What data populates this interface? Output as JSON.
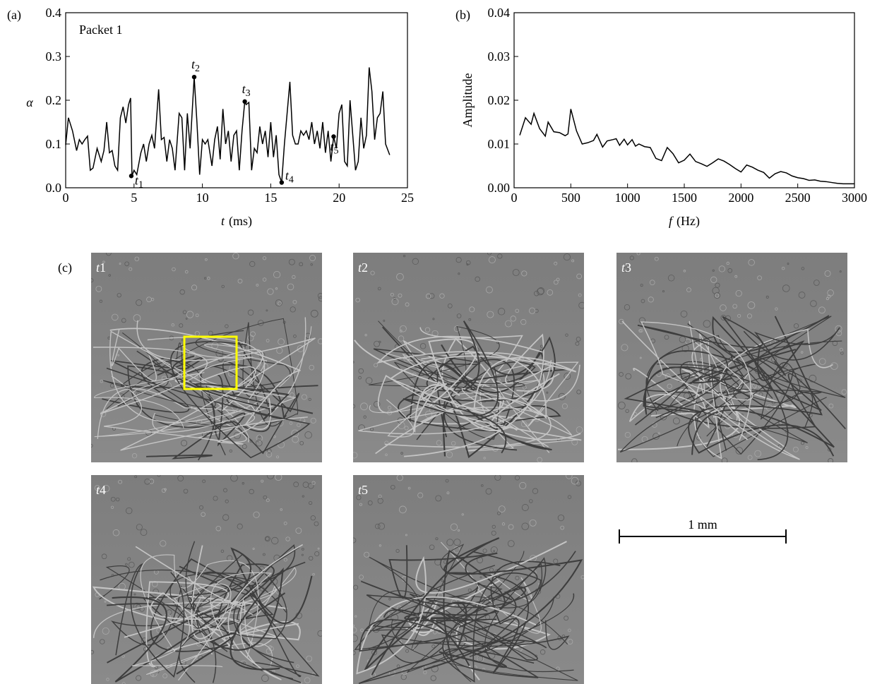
{
  "chart_data": [
    {
      "type": "line",
      "panel": "(a)",
      "annotation": "Packet 1",
      "ylabel": "α",
      "xlabel_var": "t",
      "xlabel_unit": "(ms)",
      "x": [
        0,
        0.2,
        0.5,
        0.8,
        1.0,
        1.2,
        1.4,
        1.6,
        1.8,
        2.0,
        2.3,
        2.6,
        2.8,
        3.0,
        3.2,
        3.4,
        3.6,
        3.8,
        4.0,
        4.2,
        4.4,
        4.6,
        4.75,
        4.85,
        5.0,
        5.2,
        5.5,
        5.7,
        5.9,
        6.1,
        6.3,
        6.5,
        6.8,
        7.0,
        7.2,
        7.4,
        7.6,
        7.8,
        8.0,
        8.3,
        8.5,
        8.7,
        8.9,
        9.1,
        9.4,
        9.6,
        9.8,
        10.0,
        10.2,
        10.4,
        10.7,
        10.9,
        11.1,
        11.3,
        11.5,
        11.7,
        11.9,
        12.1,
        12.3,
        12.5,
        12.7,
        12.9,
        13.1,
        13.2,
        13.4,
        13.6,
        13.8,
        14.0,
        14.2,
        14.4,
        14.6,
        14.8,
        15.0,
        15.2,
        15.4,
        15.6,
        15.8,
        16.0,
        16.4,
        16.6,
        16.8,
        17.0,
        17.2,
        17.4,
        17.6,
        17.8,
        18.0,
        18.2,
        18.4,
        18.6,
        18.8,
        19.0,
        19.2,
        19.4,
        19.6,
        19.8,
        20.0,
        20.2,
        20.4,
        20.6,
        20.8,
        21.0,
        21.2,
        21.4,
        21.6,
        21.8,
        22.0,
        22.2,
        22.4,
        22.6,
        22.8,
        23.0,
        23.2,
        23.4,
        23.7
      ],
      "values": [
        0.098,
        0.16,
        0.13,
        0.085,
        0.11,
        0.1,
        0.11,
        0.118,
        0.04,
        0.045,
        0.09,
        0.06,
        0.085,
        0.15,
        0.08,
        0.085,
        0.05,
        0.04,
        0.16,
        0.185,
        0.148,
        0.19,
        0.205,
        0.027,
        0.04,
        0.03,
        0.08,
        0.1,
        0.06,
        0.1,
        0.12,
        0.09,
        0.225,
        0.11,
        0.115,
        0.06,
        0.11,
        0.09,
        0.04,
        0.17,
        0.16,
        0.04,
        0.17,
        0.09,
        0.253,
        0.15,
        0.03,
        0.11,
        0.1,
        0.11,
        0.05,
        0.11,
        0.14,
        0.065,
        0.18,
        0.1,
        0.13,
        0.06,
        0.12,
        0.13,
        0.04,
        0.13,
        0.197,
        0.19,
        0.195,
        0.04,
        0.09,
        0.08,
        0.14,
        0.1,
        0.13,
        0.07,
        0.15,
        0.07,
        0.12,
        0.03,
        0.012,
        0.1,
        0.242,
        0.12,
        0.1,
        0.1,
        0.13,
        0.12,
        0.13,
        0.11,
        0.15,
        0.1,
        0.13,
        0.09,
        0.15,
        0.08,
        0.13,
        0.06,
        0.117,
        0.09,
        0.17,
        0.19,
        0.06,
        0.05,
        0.2,
        0.12,
        0.04,
        0.06,
        0.16,
        0.09,
        0.12,
        0.275,
        0.22,
        0.11,
        0.16,
        0.17,
        0.22,
        0.1,
        0.075
      ],
      "color": "#000000",
      "markers": {
        "x": [
          4.8,
          9.4,
          13.1,
          15.8,
          19.6
        ],
        "y": [
          0.027,
          0.253,
          0.197,
          0.012,
          0.117
        ],
        "labels": [
          "t",
          "t",
          "t",
          "t",
          "t"
        ],
        "subs": [
          "1",
          "2",
          "3",
          "4",
          "5"
        ]
      },
      "xlim": [
        0,
        25
      ],
      "xticks": [
        0,
        5,
        10,
        15,
        20,
        25
      ],
      "ylim": [
        0,
        0.4
      ],
      "yticks": [
        {
          "value": 0,
          "label": "0.0"
        },
        {
          "value": 0.1,
          "label": "0.1"
        },
        {
          "value": 0.2,
          "label": "0.2"
        },
        {
          "value": 0.3,
          "label": "0.3"
        },
        {
          "value": 0.4,
          "label": "0.4"
        }
      ]
    },
    {
      "type": "line",
      "panel": "(b)",
      "ylabel": "Amplitude",
      "xlabel_var": "f",
      "xlabel_unit": "(Hz)",
      "x": [
        50,
        100,
        150,
        175,
        225,
        275,
        300,
        350,
        400,
        450,
        475,
        500,
        550,
        600,
        650,
        700,
        730,
        780,
        820,
        870,
        900,
        930,
        970,
        1000,
        1040,
        1070,
        1100,
        1150,
        1200,
        1250,
        1300,
        1350,
        1400,
        1450,
        1500,
        1550,
        1600,
        1650,
        1700,
        1750,
        1800,
        1850,
        1900,
        1950,
        2000,
        2050,
        2100,
        2150,
        2200,
        2250,
        2300,
        2350,
        2400,
        2450,
        2500,
        2550,
        2600,
        2650,
        2700,
        2750,
        2800,
        2850,
        2900,
        2950,
        3000
      ],
      "values": [
        0.012,
        0.016,
        0.0145,
        0.017,
        0.0135,
        0.0118,
        0.015,
        0.0128,
        0.0126,
        0.0119,
        0.0123,
        0.018,
        0.013,
        0.01,
        0.0103,
        0.0108,
        0.0122,
        0.0093,
        0.0107,
        0.011,
        0.0112,
        0.0097,
        0.0111,
        0.0098,
        0.011,
        0.0095,
        0.01,
        0.0094,
        0.0092,
        0.0067,
        0.0062,
        0.0092,
        0.0078,
        0.0057,
        0.0063,
        0.0077,
        0.006,
        0.0055,
        0.0049,
        0.0057,
        0.0066,
        0.0061,
        0.0053,
        0.0044,
        0.0036,
        0.0052,
        0.0047,
        0.004,
        0.0035,
        0.0022,
        0.0032,
        0.0037,
        0.0034,
        0.0027,
        0.0023,
        0.0021,
        0.0017,
        0.0018,
        0.0015,
        0.0014,
        0.0012,
        0.001,
        0.0009,
        0.0009,
        0.0009
      ],
      "color": "#000000",
      "xlim": [
        0,
        3000
      ],
      "xticks": [
        0,
        500,
        1000,
        1500,
        2000,
        2500,
        3000
      ],
      "ylim": [
        0,
        0.04
      ],
      "yticks": [
        {
          "value": 0,
          "label": "0.00"
        },
        {
          "value": 0.01,
          "label": "0.01"
        },
        {
          "value": 0.02,
          "label": "0.02"
        },
        {
          "value": 0.03,
          "label": "0.03"
        },
        {
          "value": 0.04,
          "label": "0.04"
        }
      ]
    }
  ],
  "panel_c": {
    "label": "(c)",
    "images": [
      {
        "label": "t",
        "sub": "1"
      },
      {
        "label": "t",
        "sub": "2"
      },
      {
        "label": "t",
        "sub": "3"
      },
      {
        "label": "t",
        "sub": "4"
      },
      {
        "label": "t",
        "sub": "5"
      }
    ],
    "scale_bar": "1 mm"
  }
}
